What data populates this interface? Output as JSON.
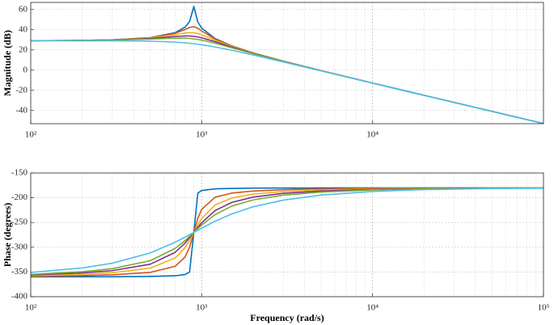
{
  "chart_data": [
    {
      "type": "line",
      "ylabel": "Magnitude (dB)",
      "log_x": true,
      "grid": true,
      "x": [
        100,
        200,
        300,
        500,
        700,
        800,
        850,
        900,
        950,
        1000,
        1200,
        1500,
        2000,
        3000,
        5000,
        10000,
        20000,
        50000,
        100000
      ],
      "series": [
        {
          "color": "#0072BD",
          "values": [
            29.1,
            29.4,
            30.0,
            32.2,
            37.1,
            42.5,
            48.2,
            63.0,
            47.7,
            41.6,
            31.2,
            24.0,
            17.1,
            8.9,
            -0.5,
            -12.8,
            -24.9,
            -40.8,
            -52.8
          ]
        },
        {
          "color": "#D95319",
          "values": [
            29.1,
            29.4,
            30.0,
            32.1,
            36.4,
            40.2,
            42.3,
            43.0,
            41.4,
            38.8,
            30.7,
            23.9,
            17.0,
            8.9,
            -0.5,
            -12.8,
            -24.9,
            -40.8,
            -52.8
          ]
        },
        {
          "color": "#EDB120",
          "values": [
            29.1,
            29.4,
            29.9,
            31.8,
            35.0,
            36.7,
            37.1,
            37.0,
            36.2,
            35.0,
            29.5,
            23.4,
            16.9,
            8.8,
            -0.5,
            -12.8,
            -24.9,
            -40.8,
            -52.8
          ]
        },
        {
          "color": "#7E2F8E",
          "values": [
            29.1,
            29.4,
            29.8,
            31.3,
            33.3,
            33.8,
            33.8,
            33.4,
            32.8,
            32.0,
            28.1,
            22.8,
            16.6,
            8.7,
            -0.6,
            -12.8,
            -24.9,
            -40.8,
            -52.8
          ]
        },
        {
          "color": "#77AC30",
          "values": [
            29.1,
            29.3,
            29.7,
            30.7,
            31.7,
            31.6,
            31.4,
            30.9,
            30.4,
            29.7,
            26.6,
            22.1,
            16.3,
            8.6,
            -0.6,
            -12.8,
            -24.9,
            -40.8,
            -52.8
          ]
        },
        {
          "color": "#4DBEEE",
          "values": [
            29.0,
            29.0,
            29.0,
            28.7,
            27.7,
            27.0,
            26.6,
            26.1,
            25.6,
            25.1,
            22.9,
            19.7,
            15.0,
            8.1,
            -0.8,
            -12.8,
            -24.9,
            -40.8,
            -52.8
          ]
        }
      ],
      "xlim": [
        100,
        100000
      ],
      "ylim": [
        -53,
        67
      ],
      "xticks": [
        {
          "value": 100,
          "label": "10²"
        },
        {
          "value": 1000,
          "label": "10³"
        },
        {
          "value": 10000,
          "label": "10⁴"
        }
      ],
      "yticks": [
        -40,
        -20,
        0,
        20,
        40,
        60
      ]
    },
    {
      "type": "line",
      "ylabel": "Phase (degrees)",
      "xlabel": "Frequency (rad/s)",
      "log_x": true,
      "grid": true,
      "x": [
        100,
        200,
        300,
        500,
        700,
        800,
        850,
        900,
        950,
        1000,
        1200,
        1500,
        2000,
        3000,
        5000,
        10000,
        20000,
        50000,
        100000
      ],
      "series": [
        {
          "color": "#0072BD",
          "values": [
            -359.9,
            -359.7,
            -359.6,
            -359.1,
            -357.7,
            -355.2,
            -350.1,
            -270,
            -190.5,
            -185.4,
            -182.0,
            -181.1,
            -180.6,
            -180.4,
            -180.2,
            -180.1,
            -180.1,
            -180.0,
            -180.0
          ]
        },
        {
          "color": "#D95319",
          "values": [
            -358.7,
            -357.3,
            -355.7,
            -350.9,
            -338.5,
            -319.7,
            -299.8,
            -270,
            -241.6,
            -223.4,
            -198.9,
            -190.6,
            -186.4,
            -183.8,
            -182.1,
            -181.0,
            -180.5,
            -180.2,
            -180.1
          ]
        },
        {
          "color": "#EDB120",
          "values": [
            -357.4,
            -354.7,
            -351.5,
            -342.2,
            -321.8,
            -300.6,
            -286.0,
            -270,
            -254.9,
            -242.2,
            -214.4,
            -200.6,
            -192.7,
            -187.5,
            -184.3,
            -182.1,
            -181.0,
            -180.4,
            -180.2
          ]
        },
        {
          "color": "#7E2F8E",
          "values": [
            -356.1,
            -352.0,
            -347.3,
            -334.3,
            -310.3,
            -291.5,
            -280.8,
            -270,
            -259.8,
            -250.6,
            -225.8,
            -209.4,
            -198.7,
            -191.2,
            -186.4,
            -183.1,
            -181.5,
            -180.6,
            -180.3
          ]
        },
        {
          "color": "#77AC30",
          "values": [
            -354.9,
            -349.4,
            -343.3,
            -327.3,
            -302.4,
            -286.4,
            -278.1,
            -270,
            -262.3,
            -255.2,
            -233.9,
            -216.9,
            -204.3,
            -194.8,
            -188.5,
            -184.2,
            -182.1,
            -180.8,
            -180.4
          ]
        },
        {
          "color": "#4DBEEE",
          "values": [
            -351.0,
            -341.9,
            -332.3,
            -311.6,
            -289.9,
            -279.6,
            -274.7,
            -270,
            -265.6,
            -261.4,
            -247.4,
            -232.7,
            -218.3,
            -204.8,
            -194.6,
            -187.2,
            -183.6,
            -181.4,
            -180.7
          ]
        }
      ],
      "xlim": [
        100,
        100000
      ],
      "ylim": [
        -400,
        -150
      ],
      "xticks": [
        {
          "value": 100,
          "label": "10²"
        },
        {
          "value": 1000,
          "label": "10³"
        },
        {
          "value": 10000,
          "label": "10⁴"
        },
        {
          "value": 100000,
          "label": "10⁵"
        }
      ],
      "yticks": [
        -400,
        -350,
        -300,
        -250,
        -200,
        -150
      ]
    }
  ]
}
